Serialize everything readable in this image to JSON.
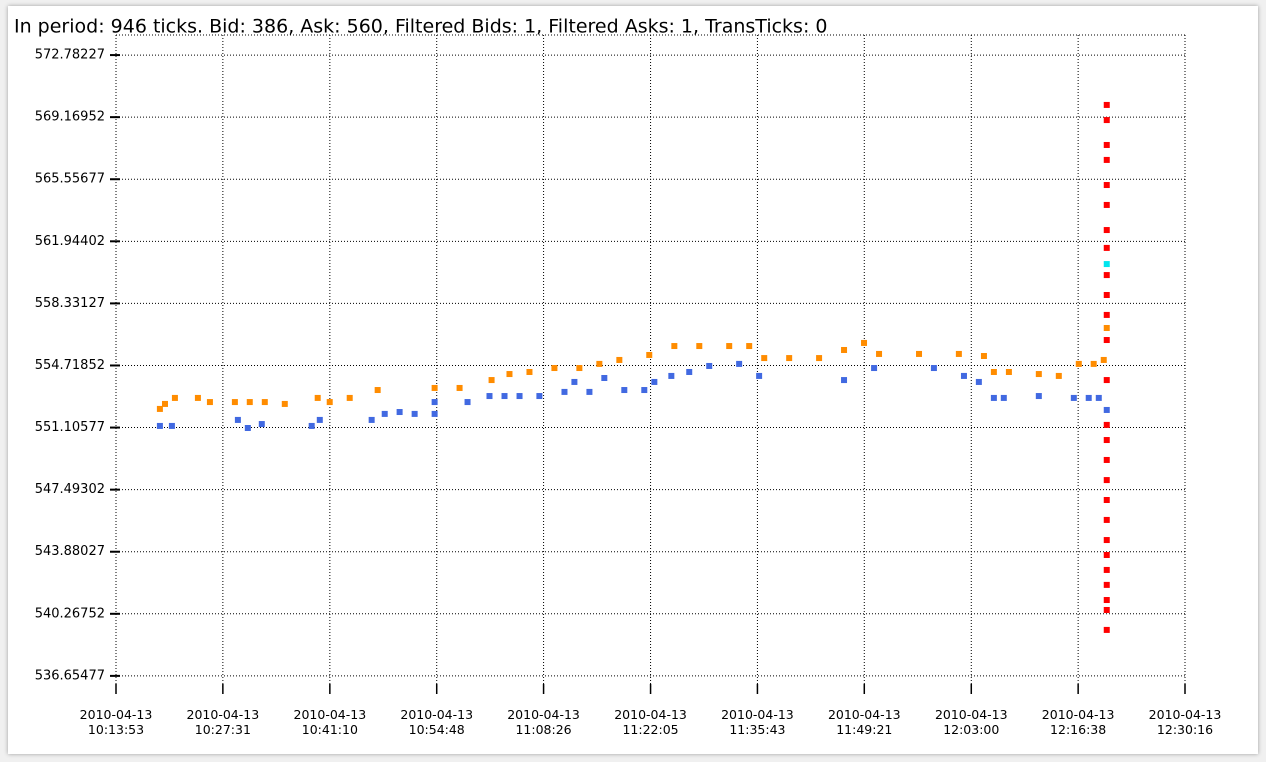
{
  "chart_data": {
    "type": "scatter",
    "title": "In period: 946 ticks. Bid: 386, Ask: 560, Filtered Bids: 1, Filtered Asks: 1, TransTicks: 0",
    "xlim": [
      "2010-04-13 10:13:53",
      "2010-04-13 12:30:16"
    ],
    "xticks": [
      "2010-04-13 10:13:53",
      "2010-04-13 10:27:31",
      "2010-04-13 10:41:10",
      "2010-04-13 10:54:48",
      "2010-04-13 11:08:26",
      "2010-04-13 11:22:05",
      "2010-04-13 11:35:43",
      "2010-04-13 11:49:21",
      "2010-04-13 12:03:00",
      "2010-04-13 12:16:38",
      "2010-04-13 12:30:16"
    ],
    "ylim": [
      535.95,
      573.95
    ],
    "yticks": [
      536.65477,
      540.26752,
      543.88027,
      547.49302,
      551.10577,
      554.71852,
      558.33127,
      561.94402,
      565.55677,
      569.16952,
      572.78227
    ],
    "grid": true,
    "series": [
      {
        "color": "#ff8c00",
        "x": [
          "2010-04-13 10:19:29",
          "2010-04-13 10:20:08",
          "2010-04-13 10:21:24",
          "2010-04-13 10:24:20",
          "2010-04-13 10:25:52",
          "2010-04-13 10:29:03",
          "2010-04-13 10:30:57",
          "2010-04-13 10:32:52",
          "2010-04-13 10:35:25",
          "2010-04-13 10:39:37",
          "2010-04-13 10:41:09",
          "2010-04-13 10:43:42",
          "2010-04-13 10:47:16",
          "2010-04-13 10:54:32",
          "2010-04-13 10:57:43",
          "2010-04-13 11:01:48",
          "2010-04-13 11:04:05",
          "2010-04-13 11:06:38",
          "2010-04-13 11:09:49",
          "2010-04-13 11:13:00",
          "2010-04-13 11:15:33",
          "2010-04-13 11:18:06",
          "2010-04-13 11:21:55",
          "2010-04-13 11:25:07",
          "2010-04-13 11:28:18",
          "2010-04-13 11:32:07",
          "2010-04-13 11:34:40",
          "2010-04-13 11:36:35",
          "2010-04-13 11:39:46",
          "2010-04-13 11:43:35",
          "2010-04-13 11:46:46",
          "2010-04-13 11:49:19",
          "2010-04-13 11:51:14",
          "2010-04-13 11:56:20",
          "2010-04-13 12:01:25",
          "2010-04-13 12:04:37",
          "2010-04-13 12:05:53",
          "2010-04-13 12:07:48",
          "2010-04-13 12:11:37",
          "2010-04-13 12:14:10",
          "2010-04-13 12:16:43",
          "2010-04-13 12:18:37",
          "2010-04-13 12:19:54",
          "2010-04-13 12:20:17"
        ],
        "values": [
          552.19,
          552.48,
          552.83,
          552.83,
          552.59,
          552.59,
          552.59,
          552.59,
          552.48,
          552.83,
          552.59,
          552.83,
          553.29,
          553.41,
          553.41,
          553.87,
          554.22,
          554.34,
          554.57,
          554.57,
          554.81,
          555.04,
          555.33,
          555.85,
          555.85,
          555.85,
          555.85,
          555.15,
          555.15,
          555.15,
          555.62,
          556.03,
          555.39,
          555.39,
          555.39,
          555.27,
          554.34,
          554.34,
          554.22,
          554.11,
          554.81,
          554.81,
          555.04,
          556.9
        ]
      },
      {
        "color": "#4169e1",
        "x": [
          "2010-04-13 10:19:29",
          "2010-04-13 10:21:01",
          "2010-04-13 10:29:26",
          "2010-04-13 10:30:42",
          "2010-04-13 10:32:29",
          "2010-04-13 10:38:51",
          "2010-04-13 10:39:53",
          "2010-04-13 10:46:30",
          "2010-04-13 10:48:10",
          "2010-04-13 10:50:04",
          "2010-04-13 10:51:59",
          "2010-04-13 10:54:32",
          "2010-04-13 10:54:32",
          "2010-04-13 10:58:44",
          "2010-04-13 11:01:32",
          "2010-04-13 11:03:27",
          "2010-04-13 11:05:22",
          "2010-04-13 11:07:54",
          "2010-04-13 11:11:06",
          "2010-04-13 11:12:22",
          "2010-04-13 11:14:17",
          "2010-04-13 11:16:11",
          "2010-04-13 11:18:44",
          "2010-04-13 11:21:17",
          "2010-04-13 11:22:34",
          "2010-04-13 11:24:44",
          "2010-04-13 11:27:01",
          "2010-04-13 11:29:34",
          "2010-04-13 11:33:23",
          "2010-04-13 11:35:56",
          "2010-04-13 11:46:46",
          "2010-04-13 11:50:36",
          "2010-04-13 11:58:14",
          "2010-04-13 12:02:04",
          "2010-04-13 12:03:58",
          "2010-04-13 12:05:53",
          "2010-04-13 12:07:09",
          "2010-04-13 12:11:37",
          "2010-04-13 12:16:05",
          "2010-04-13 12:17:59",
          "2010-04-13 12:19:16",
          "2010-04-13 12:20:17"
        ],
        "values": [
          551.2,
          551.2,
          551.55,
          551.08,
          551.31,
          551.2,
          551.55,
          551.55,
          551.9,
          552.01,
          551.9,
          551.9,
          552.59,
          552.59,
          552.94,
          552.94,
          552.94,
          552.94,
          553.18,
          553.76,
          553.18,
          553.99,
          553.29,
          553.29,
          553.76,
          554.11,
          554.34,
          554.69,
          554.81,
          554.11,
          553.87,
          554.57,
          554.57,
          554.11,
          553.76,
          552.83,
          552.83,
          552.94,
          552.83,
          552.83,
          552.83,
          552.13
        ]
      },
      {
        "color": "#ff0000",
        "x": [
          "2010-04-13 12:20:17",
          "2010-04-13 12:20:17",
          "2010-04-13 12:20:17",
          "2010-04-13 12:20:17",
          "2010-04-13 12:20:17",
          "2010-04-13 12:20:17",
          "2010-04-13 12:20:17",
          "2010-04-13 12:20:17",
          "2010-04-13 12:20:17",
          "2010-04-13 12:20:17",
          "2010-04-13 12:20:17",
          "2010-04-13 12:20:17",
          "2010-04-13 12:20:17",
          "2010-04-13 12:20:17",
          "2010-04-13 12:20:17",
          "2010-04-13 12:20:17",
          "2010-04-13 12:20:17",
          "2010-04-13 12:20:17",
          "2010-04-13 12:20:17",
          "2010-04-13 12:20:17",
          "2010-04-13 12:20:17",
          "2010-04-13 12:20:17",
          "2010-04-13 12:20:17",
          "2010-04-13 12:20:17",
          "2010-04-13 12:20:17",
          "2010-04-13 12:20:17"
        ],
        "values": [
          569.88,
          569.0,
          567.55,
          566.68,
          565.22,
          564.06,
          562.6,
          561.56,
          559.98,
          558.82,
          557.66,
          556.2,
          553.87,
          551.26,
          550.38,
          549.22,
          548.05,
          546.89,
          545.73,
          544.56,
          543.69,
          542.82,
          541.95,
          541.07,
          540.49,
          539.33
        ]
      },
      {
        "color": "#00e5ee",
        "x": [
          "2010-04-13 12:20:17"
        ],
        "values": [
          560.62
        ]
      }
    ]
  }
}
